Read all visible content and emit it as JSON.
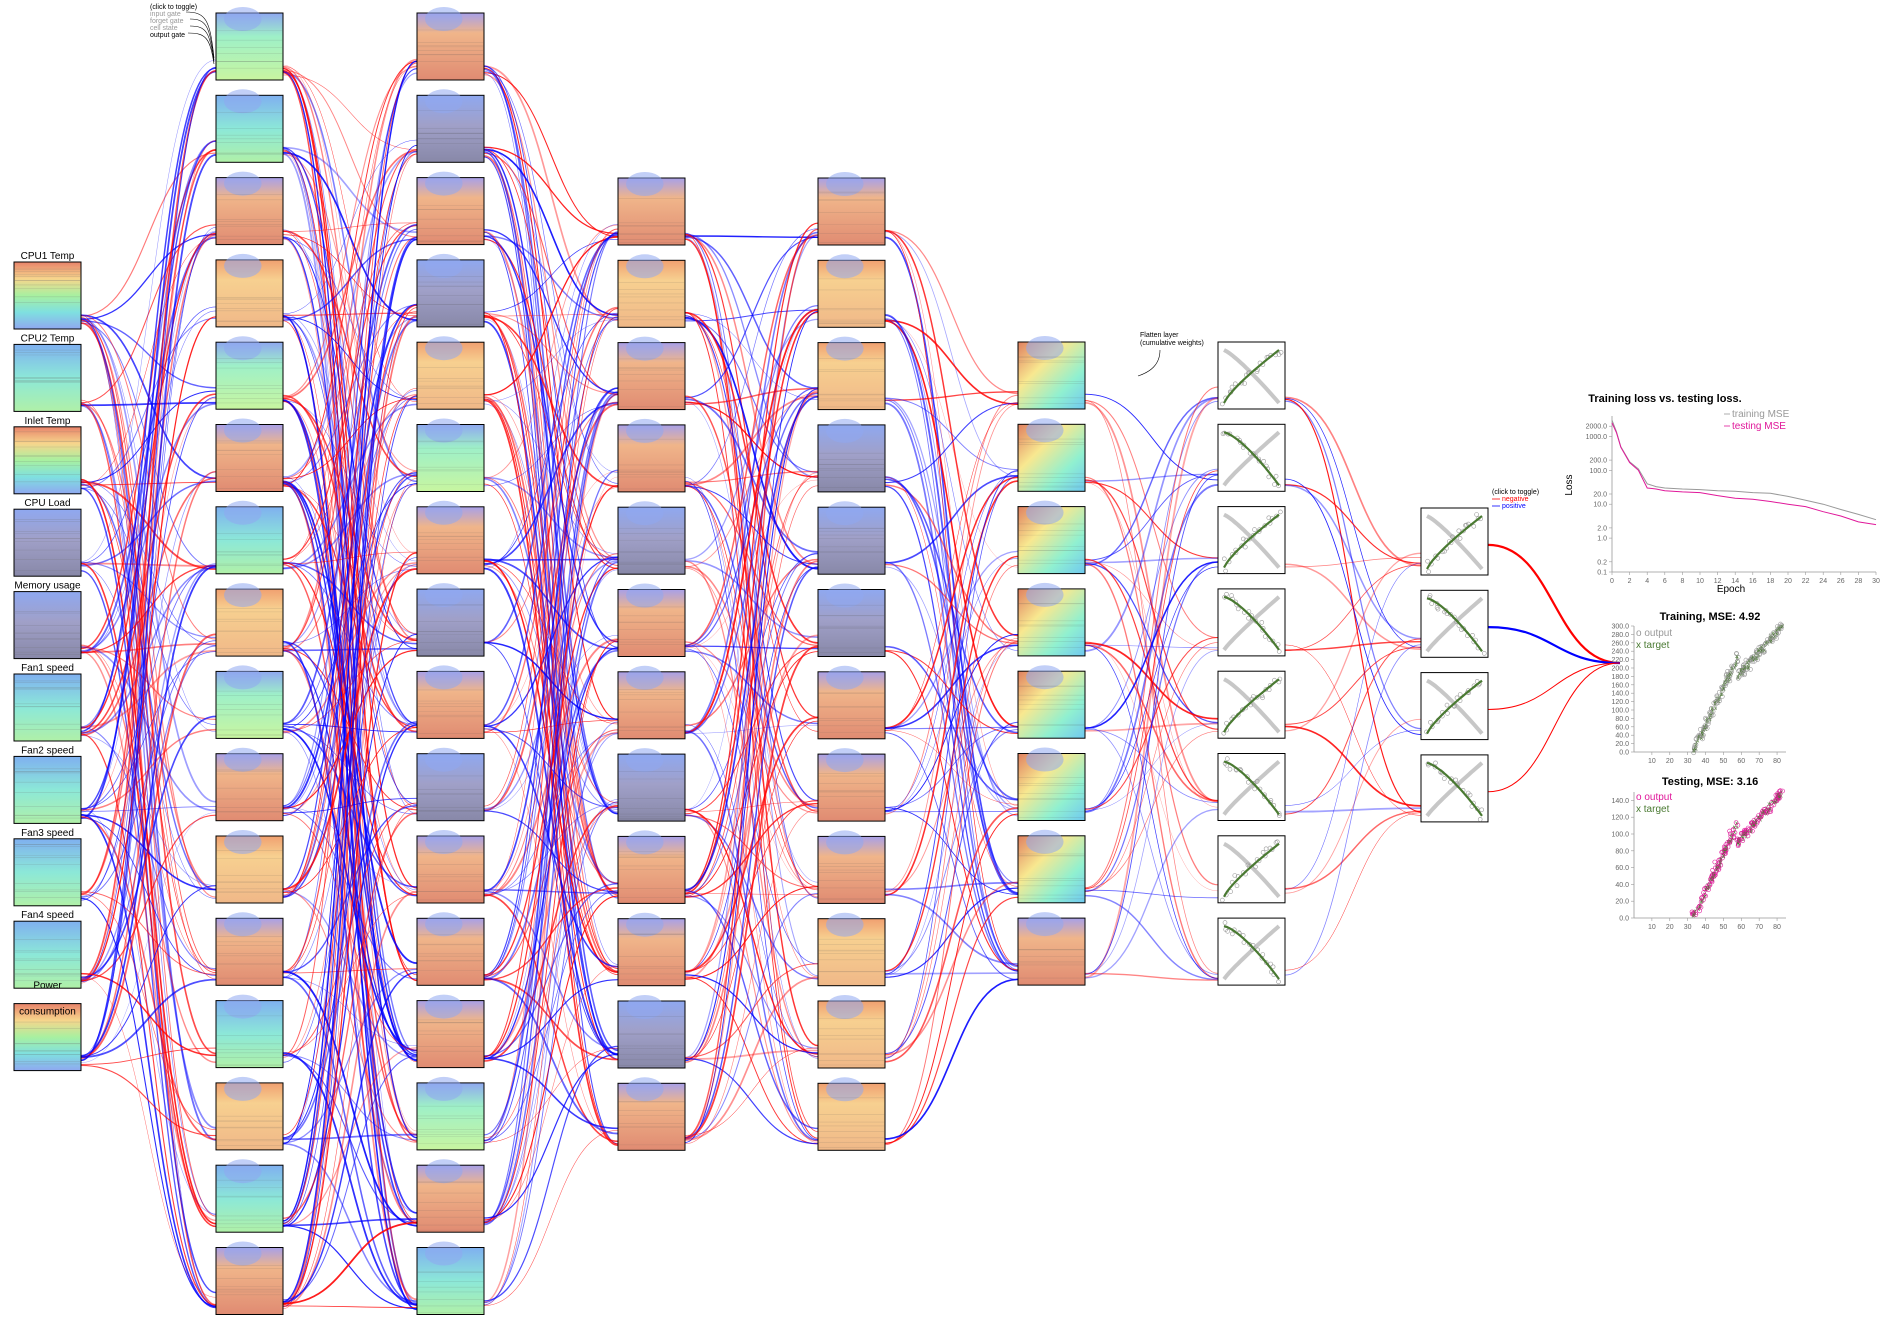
{
  "input_features": [
    "CPU1 Temp",
    "CPU2 Temp",
    "Inlet Temp",
    "CPU Load",
    "Memory usage",
    "Fan1 speed",
    "Fan2 speed",
    "Fan3 speed",
    "Fan4 speed",
    "Power consumption"
  ],
  "input_label_lines": [
    [
      "CPU1 Temp"
    ],
    [
      "CPU2 Temp"
    ],
    [
      "Inlet Temp"
    ],
    [
      "CPU Load"
    ],
    [
      "Memory usage"
    ],
    [
      "Fan1 speed"
    ],
    [
      "Fan2 speed"
    ],
    [
      "Fan3 speed"
    ],
    [
      "Fan4 speed"
    ],
    [
      "Power",
      "consumption"
    ]
  ],
  "gate_legend": {
    "title": "(click to toggle)",
    "items": [
      "input gate",
      "forget gate",
      "cell state",
      "output gate"
    ]
  },
  "flatten_note": {
    "line1": "Flatten layer",
    "line2": "(cumulative weights)"
  },
  "weight_legend": {
    "title": "(click to toggle)",
    "negative": "negative",
    "positive": "positive"
  },
  "colors": {
    "negative": "#ff0000",
    "positive": "#0000ff",
    "training": "#999999",
    "testing": "#e0189a",
    "target": "#4a7a32"
  },
  "layers": [
    {
      "name": "layer1",
      "count": 16
    },
    {
      "name": "layer2",
      "count": 16
    },
    {
      "name": "layer3",
      "count": 12
    },
    {
      "name": "layer4",
      "count": 12
    },
    {
      "name": "layer5",
      "count": 8
    },
    {
      "name": "layer6",
      "count": 8
    },
    {
      "name": "layer7",
      "count": 4
    }
  ],
  "loss_chart": {
    "title": "Training loss vs. testing loss.",
    "xlabel": "Epoch",
    "ylabel": "Loss",
    "legend": [
      "training MSE",
      "testing MSE"
    ],
    "x_ticks": [
      "0",
      "2",
      "4",
      "6",
      "8",
      "10",
      "12",
      "14",
      "16",
      "18",
      "20",
      "22",
      "24",
      "26",
      "28",
      "30"
    ],
    "y_ticks": [
      "2000.0",
      "1000.0",
      "200.0",
      "100.0",
      "20.0",
      "10.0",
      "2.0",
      "1.0",
      "0.2",
      "0.1"
    ]
  },
  "chart_data": [
    {
      "type": "line",
      "title": "Training loss vs. testing loss.",
      "xlabel": "Epoch",
      "ylabel": "Loss",
      "yscale": "log",
      "xlim": [
        0,
        30
      ],
      "ylim": [
        0.1,
        4000
      ],
      "series": [
        {
          "name": "training MSE",
          "x": [
            0,
            0.5,
            1,
            2,
            3,
            4,
            5,
            6,
            8,
            10,
            12,
            14,
            16,
            18,
            20,
            22,
            24,
            26,
            28,
            30
          ],
          "y": [
            3000,
            1400,
            500,
            180,
            110,
            40,
            33,
            30,
            28,
            27,
            25,
            24,
            22,
            21,
            17,
            13,
            10,
            7,
            5,
            3.5
          ]
        },
        {
          "name": "testing MSE",
          "x": [
            0,
            0.5,
            1,
            2,
            3,
            4,
            5,
            6,
            8,
            10,
            12,
            14,
            16,
            18,
            20,
            22,
            24,
            26,
            28,
            30
          ],
          "y": [
            2500,
            1300,
            480,
            170,
            100,
            30,
            28,
            25,
            23,
            22,
            18,
            15,
            14,
            12,
            10,
            8.5,
            6,
            4.5,
            3,
            2.5
          ]
        }
      ]
    },
    {
      "type": "scatter",
      "title": "Training, MSE: 4.92",
      "legend": [
        "output",
        "target"
      ],
      "xlim": [
        0,
        85
      ],
      "ylim": [
        0,
        300
      ],
      "x_ticks": [
        "10",
        "20",
        "30",
        "40",
        "50",
        "60",
        "70",
        "80"
      ],
      "y_ticks": [
        "0.0",
        "20.0",
        "40.0",
        "60.0",
        "80.0",
        "100.0",
        "120.0",
        "140.0",
        "160.0",
        "180.0",
        "200.0",
        "220.0",
        "240.0",
        "260.0",
        "280.0",
        "300.0"
      ]
    },
    {
      "type": "scatter",
      "title": "Testing, MSE: 3.16",
      "legend": [
        "output",
        "target"
      ],
      "xlim": [
        0,
        85
      ],
      "ylim": [
        0,
        150
      ],
      "x_ticks": [
        "10",
        "20",
        "30",
        "40",
        "50",
        "60",
        "70",
        "80"
      ],
      "y_ticks": [
        "0.0",
        "20.0",
        "40.0",
        "60.0",
        "80.0",
        "100.0",
        "120.0",
        "140.0"
      ]
    }
  ]
}
